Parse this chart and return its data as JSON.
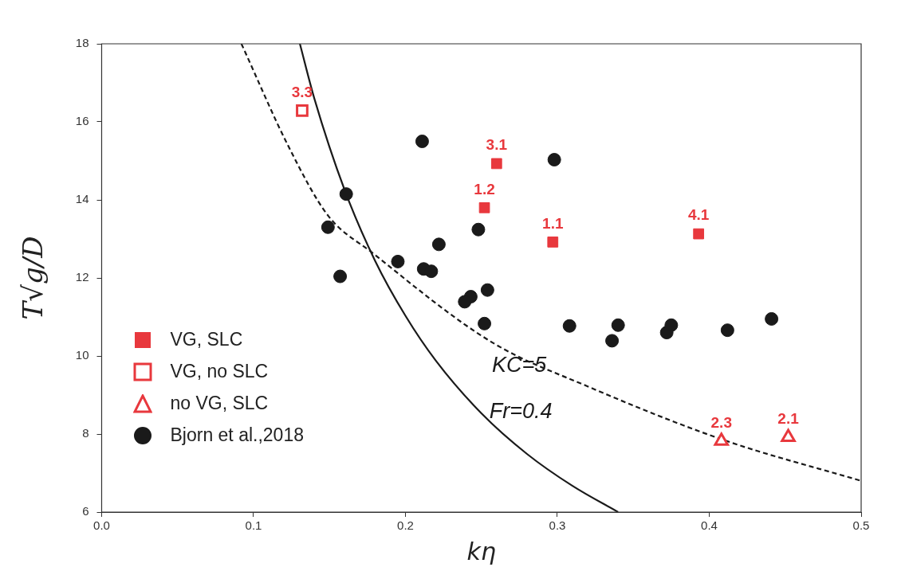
{
  "chart_data": {
    "type": "scatter",
    "xlabel": "kη",
    "ylabel": "T√g/D",
    "xlim": [
      0.0,
      0.5
    ],
    "xticks": [
      {
        "value": 0.0,
        "label": "0.0"
      },
      0.1,
      0.2,
      0.3,
      0.4,
      0.5
    ],
    "ylim": [
      6,
      18
    ],
    "yticks": [
      6,
      8,
      10,
      12,
      14,
      16,
      18
    ],
    "grid": false,
    "legend": "bottom left",
    "annotations": [
      {
        "text": "3.1",
        "x": 0.26,
        "y": 14.93
      },
      {
        "text": "1.2",
        "x": 0.252,
        "y": 13.8
      },
      {
        "text": "1.1",
        "x": 0.297,
        "y": 12.92
      },
      {
        "text": "4.1",
        "x": 0.393,
        "y": 13.13
      },
      {
        "text": "3.3",
        "x": 0.132,
        "y": 16.29
      },
      {
        "text": "2.3",
        "x": 0.408,
        "y": 7.82
      },
      {
        "text": "2.1",
        "x": 0.452,
        "y": 7.92
      }
    ],
    "series": [
      {
        "name": "VG, SLC",
        "type": "scatter",
        "marker": "square",
        "color": "#e8383d",
        "x": [
          0.26,
          0.252,
          0.297,
          0.393
        ],
        "values": [
          14.93,
          13.8,
          12.92,
          13.13
        ]
      },
      {
        "name": "VG, no SLC",
        "type": "scatter",
        "marker": "square",
        "color": "#e8383d",
        "x": [
          0.132
        ],
        "values": [
          16.29
        ]
      },
      {
        "name": "no VG, SLC",
        "type": "scatter",
        "marker": "triangle",
        "color": "#e8383d",
        "x": [
          0.408,
          0.452
        ],
        "values": [
          7.82,
          7.92
        ]
      },
      {
        "name": "Bjorn et al.,2018",
        "type": "scatter",
        "marker": "circle",
        "color": "#1a1a1a",
        "x": [
          0.211,
          0.298,
          0.161,
          0.149,
          0.248,
          0.222,
          0.195,
          0.212,
          0.217,
          0.157,
          0.254,
          0.243,
          0.239,
          0.252,
          0.308,
          0.34,
          0.336,
          0.372,
          0.375,
          0.412,
          0.441
        ],
        "values": [
          15.5,
          15.03,
          14.15,
          13.3,
          13.24,
          12.86,
          12.42,
          12.23,
          12.17,
          12.04,
          11.69,
          11.52,
          11.39,
          10.83,
          10.77,
          10.79,
          10.39,
          10.6,
          10.79,
          10.66,
          10.95
        ]
      },
      {
        "name": "KC=5",
        "type": "line",
        "marker": "none",
        "line_style": "dashed",
        "color": "#1a1a1a",
        "x": [
          0.092,
          0.123,
          0.149,
          0.178,
          0.257,
          0.32,
          0.41,
          0.5
        ],
        "values": [
          18,
          15.37,
          13.6,
          12.65,
          10.35,
          9.22,
          7.84,
          6.8
        ]
      },
      {
        "name": "Fr=0.4",
        "type": "line",
        "marker": "none",
        "line_style": "solid",
        "color": "#1a1a1a",
        "x": [
          0.1305,
          0.14,
          0.16,
          0.18,
          0.2,
          0.22,
          0.25,
          0.28,
          0.31,
          0.34
        ],
        "values": [
          18,
          16.6,
          14.25,
          12.44,
          11.03,
          9.88,
          8.53,
          7.49,
          6.67,
          6.0
        ]
      }
    ]
  }
}
